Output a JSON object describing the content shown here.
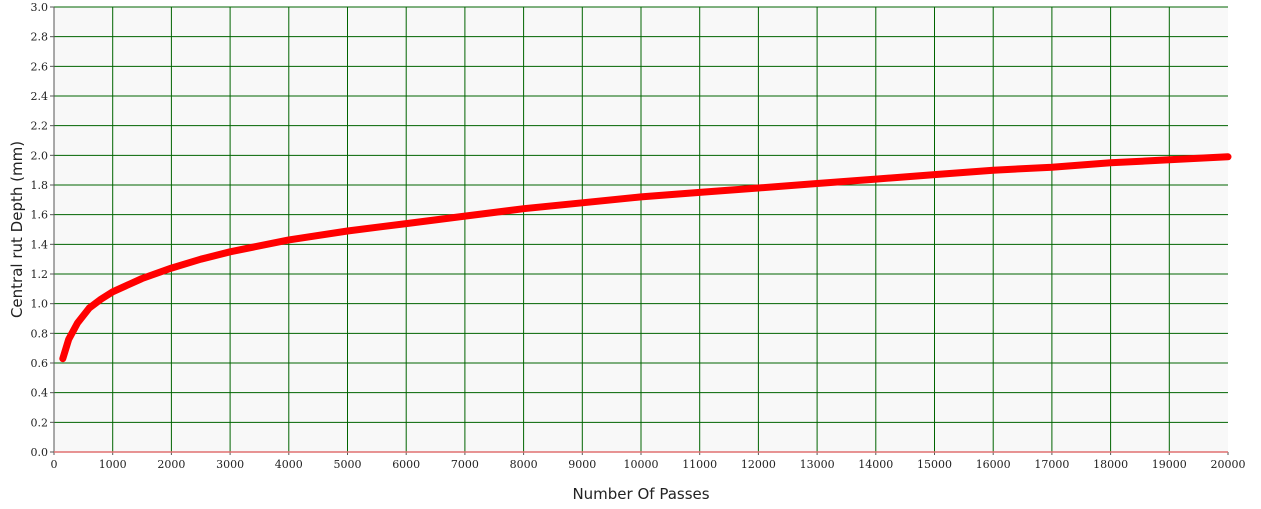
{
  "chart_data": {
    "type": "line",
    "title": "",
    "xlabel": "Number Of Passes",
    "ylabel": "Central rut Depth (mm)",
    "xlim": [
      0,
      20000
    ],
    "ylim": [
      0,
      3.0
    ],
    "grid": true,
    "xticks": [
      0,
      1000,
      2000,
      3000,
      4000,
      5000,
      6000,
      7000,
      8000,
      9000,
      10000,
      11000,
      12000,
      13000,
      14000,
      15000,
      16000,
      17000,
      18000,
      19000,
      20000
    ],
    "yticks": [
      "0.0",
      "0.2",
      "0.4",
      "0.6",
      "0.8",
      "1.0",
      "1.2",
      "1.4",
      "1.6",
      "1.8",
      "2.0",
      "2.2",
      "2.4",
      "2.6",
      "2.8",
      "3.0"
    ],
    "series": [
      {
        "color": "#ff0000",
        "x": [
          150,
          250,
          400,
          600,
          800,
          1000,
          1500,
          2000,
          2500,
          3000,
          4000,
          5000,
          6000,
          7000,
          8000,
          9000,
          10000,
          11000,
          12000,
          13000,
          14000,
          15000,
          16000,
          17000,
          18000,
          19000,
          20000
        ],
        "y": [
          0.63,
          0.76,
          0.87,
          0.97,
          1.03,
          1.08,
          1.17,
          1.24,
          1.3,
          1.35,
          1.43,
          1.49,
          1.54,
          1.59,
          1.64,
          1.68,
          1.72,
          1.75,
          1.78,
          1.81,
          1.84,
          1.87,
          1.9,
          1.92,
          1.95,
          1.97,
          1.99
        ]
      }
    ]
  },
  "colors": {
    "plot_background": "#f8f8f8",
    "grid": "#006400",
    "baseline": "#e07070",
    "line": "#ff0000"
  }
}
